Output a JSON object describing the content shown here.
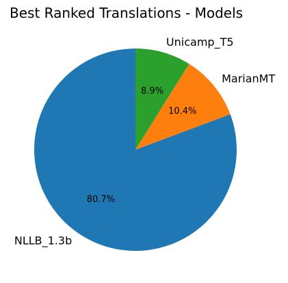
{
  "chart_data": {
    "type": "pie",
    "title": "Best Ranked Translations - Models",
    "labels": [
      "NLLB_1.3b",
      "MarianMT",
      "Unicamp_T5"
    ],
    "values": [
      80.7,
      10.4,
      8.9
    ],
    "value_labels": [
      "80.7%",
      "10.4%",
      "8.9%"
    ],
    "colors": [
      "#1f77b4",
      "#ff7f0e",
      "#2ca02c"
    ],
    "start_angle_deg": 90,
    "direction": "counterclockwise",
    "legend": "none"
  }
}
